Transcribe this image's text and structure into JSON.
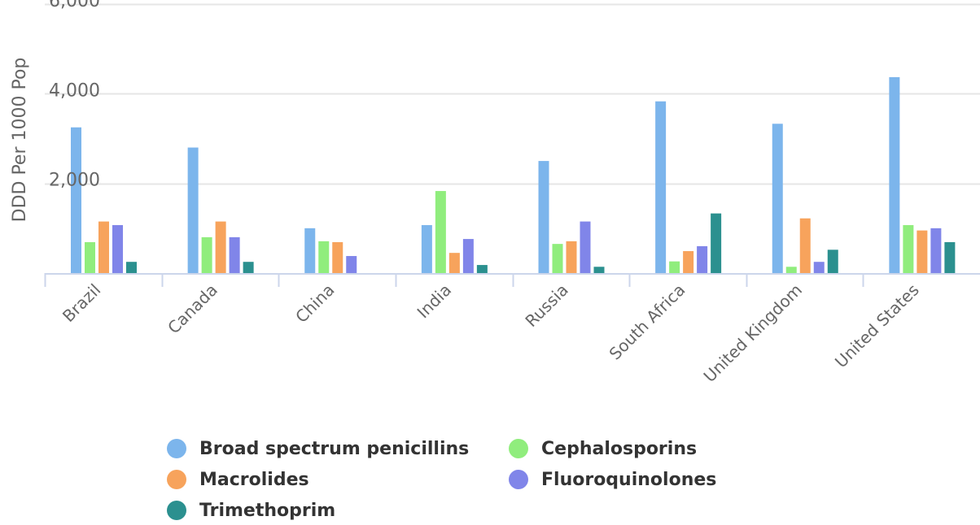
{
  "colors": {
    "Broad spectrum penicillins": "#7cb5ec",
    "Cephalosporins": "#90ed7d",
    "Macrolides": "#f7a35c",
    "Fluoroquinolones": "#8085e9",
    "Trimethoprim": "#2b908f",
    "grid": "#e6e6e6",
    "axis": "#ccd6eb",
    "text": "#666666"
  },
  "legend": {
    "items": [
      {
        "label": "Broad spectrum penicillins",
        "icon": "legend-dot"
      },
      {
        "label": "Cephalosporins",
        "icon": "legend-dot"
      },
      {
        "label": "Macrolides",
        "icon": "legend-dot"
      },
      {
        "label": "Fluoroquinolones",
        "icon": "legend-dot"
      },
      {
        "label": "Trimethoprim",
        "icon": "legend-dot"
      }
    ]
  },
  "chart_data": {
    "type": "bar",
    "title": "",
    "xlabel": "",
    "ylabel": "DDD Per 1000 Pop",
    "ylim": [
      0,
      6000
    ],
    "yticks": [
      2000,
      4000,
      6000
    ],
    "ytick_labels": [
      "2,000",
      "4,000",
      "6,000"
    ],
    "grid": true,
    "legend_position": "bottom",
    "categories": [
      "Brazil",
      "Canada",
      "China",
      "India",
      "Russia",
      "South Africa",
      "United Kingdom",
      "United States"
    ],
    "series": [
      {
        "name": "Broad spectrum penicillins",
        "values": [
          3250,
          2800,
          1000,
          1070,
          2500,
          3830,
          3330,
          4370
        ]
      },
      {
        "name": "Cephalosporins",
        "values": [
          690,
          800,
          710,
          1830,
          650,
          260,
          140,
          1070
        ]
      },
      {
        "name": "Macrolides",
        "values": [
          1150,
          1150,
          690,
          450,
          710,
          490,
          1220,
          950
        ]
      },
      {
        "name": "Fluoroquinolones",
        "values": [
          1070,
          800,
          380,
          760,
          1150,
          600,
          250,
          1000
        ]
      },
      {
        "name": "Trimethoprim",
        "values": [
          250,
          250,
          null,
          180,
          140,
          1330,
          520,
          690
        ]
      }
    ]
  }
}
